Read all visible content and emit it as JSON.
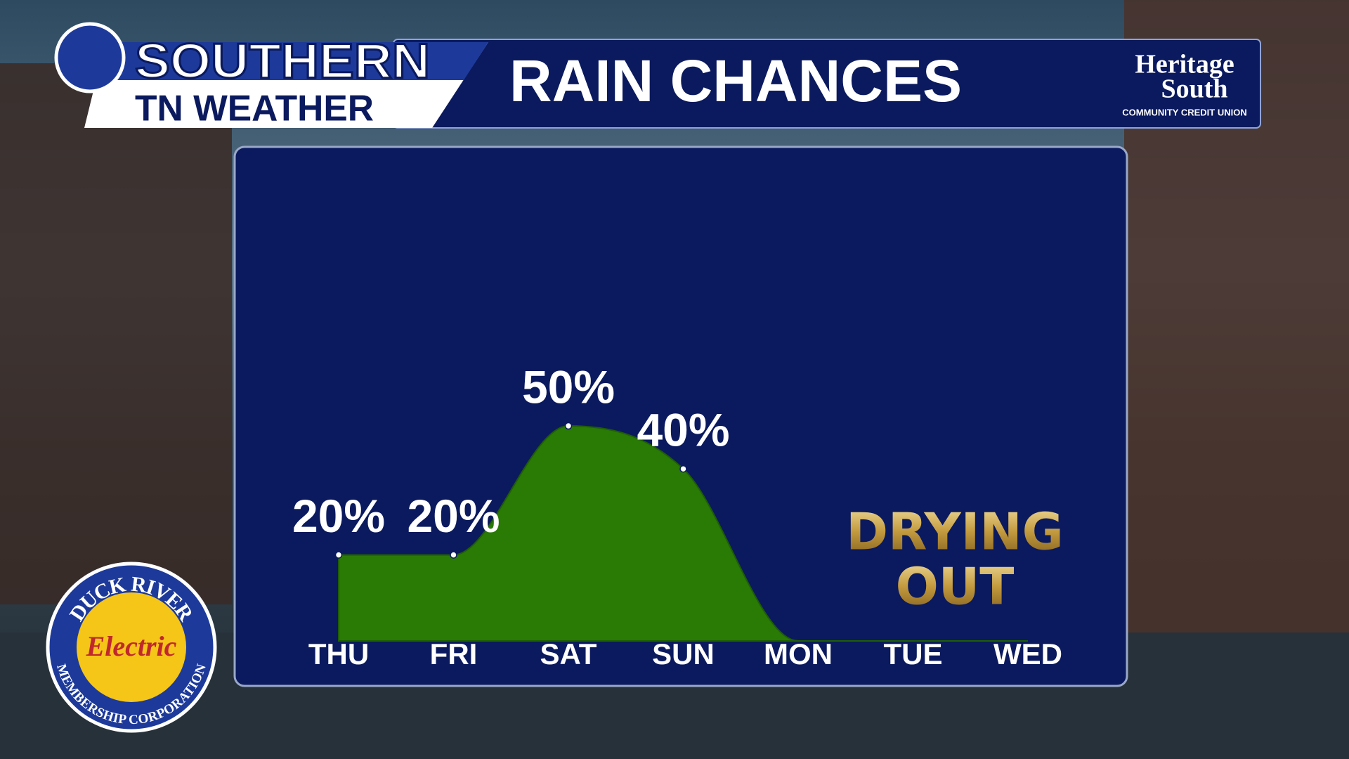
{
  "header": {
    "brand_top": "SOUTHERN",
    "brand_bottom": "TN WEATHER",
    "sponsor_line1": "Heritage",
    "sponsor_line2": "South",
    "sponsor_line3": "COMMUNITY CREDIT UNION"
  },
  "footer_logo": {
    "top": "DUCK RIVER",
    "middle": "Electric",
    "bottom": "MEMBERSHIP CORPORATION"
  },
  "chart_data": {
    "type": "area",
    "title": "RAIN CHANCES",
    "categories": [
      "THU",
      "FRI",
      "SAT",
      "SUN",
      "MON",
      "TUE",
      "WED"
    ],
    "values": [
      20,
      20,
      50,
      40,
      0,
      0,
      0
    ],
    "value_labels": [
      "20%",
      "20%",
      "50%",
      "40%",
      null,
      null,
      null
    ],
    "color": "#2a7a06",
    "ylim": [
      0,
      100
    ],
    "annotation": [
      "DRYING",
      "OUT"
    ]
  }
}
